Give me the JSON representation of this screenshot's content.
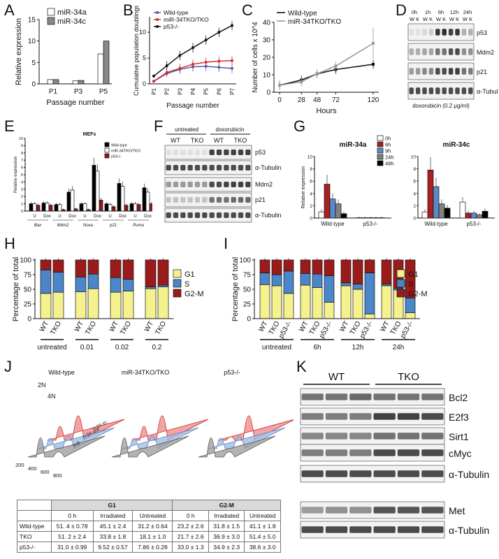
{
  "panels": {
    "A": {
      "letter": "A",
      "legend": [
        "miR-34a",
        "miR-34c"
      ],
      "ylabel": "Relative expression",
      "xlabel": "Passage number",
      "categories": [
        "P1",
        "P3",
        "P5"
      ],
      "yticks": [
        "0",
        "5",
        "10",
        "15"
      ],
      "series": [
        {
          "name": "miR-34a",
          "values": [
            1,
            0.7,
            7
          ],
          "color": "#ffffff"
        },
        {
          "name": "miR-34c",
          "values": [
            1,
            0.8,
            10
          ],
          "color": "#888888"
        }
      ]
    },
    "B": {
      "letter": "B",
      "legend": [
        "Wild-type",
        "miR-34TKO/TKO",
        "p53-/-"
      ],
      "ylabel": "Cumulative population doublings",
      "xlabel": "Passage number",
      "categories": [
        "P1",
        "P2",
        "P3",
        "P4",
        "P5",
        "P6",
        "P7"
      ],
      "yticks": [
        "0",
        "5",
        "10"
      ],
      "series": [
        {
          "name": "Wild-type",
          "values": [
            0.5,
            2,
            2.8,
            3.3,
            3.4,
            3.2,
            3.0
          ],
          "color": "#4a5fb0"
        },
        {
          "name": "miR-34TKO/TKO",
          "values": [
            0.5,
            2.2,
            3.0,
            3.8,
            4.2,
            4.4,
            4.5
          ],
          "color": "#d62e2e"
        },
        {
          "name": "p53-/-",
          "values": [
            1.5,
            3.5,
            5.5,
            7.0,
            8.5,
            10,
            11.3
          ],
          "color": "#111111"
        }
      ]
    },
    "C": {
      "letter": "C",
      "legend": [
        "Wild-type",
        "miR-34TKO/TKO"
      ],
      "ylabel": "Number of cells x 10^4",
      "xlabel": "Hours",
      "x": [
        0,
        28,
        48,
        72,
        120
      ],
      "xticks": [
        "0",
        "28",
        "48",
        "72",
        "120"
      ],
      "yticks": [
        "0",
        "10",
        "20",
        "30",
        "40"
      ],
      "series": [
        {
          "name": "Wild-type",
          "values": [
            4,
            7,
            10.5,
            13,
            16
          ],
          "color": "#111111"
        },
        {
          "name": "miR-34TKO/TKO",
          "values": [
            4,
            6,
            10.5,
            15,
            28
          ],
          "color": "#999999"
        }
      ]
    },
    "D": {
      "letter": "D",
      "times": [
        "0h",
        "1h",
        "6h",
        "12h",
        "24h"
      ],
      "lanes": "W K",
      "bands": [
        "p53",
        "Mdm2",
        "p21",
        "α-Tubulin"
      ],
      "caption": "doxorubicin (0.2 μg/ml)"
    },
    "E": {
      "letter": "E",
      "title": "MEFs",
      "legend": [
        "Wild-type",
        "miR-34TKO/TKO",
        "p53-/-"
      ],
      "ylabel": "Relative expression",
      "yticks": [
        "0",
        "1",
        "2",
        "3",
        "4",
        "5",
        "6",
        "7",
        "8",
        "9",
        "10"
      ],
      "genes": [
        "Bax",
        "Mdm2",
        "Noxa",
        "p21",
        "Puma"
      ],
      "conditions": [
        "U",
        "Dox"
      ],
      "series": [
        {
          "name": "Wild-type",
          "values": [
            1,
            1.1,
            0.9,
            2.6,
            1.0,
            6.3,
            1.0,
            3.8,
            1.0,
            3.2
          ],
          "color": "#000000"
        },
        {
          "name": "miR-34TKO/TKO",
          "values": [
            1.0,
            1.1,
            0.9,
            2.9,
            1.0,
            5.5,
            0.9,
            3.4,
            1.0,
            2.6
          ],
          "color": "#ffffff"
        },
        {
          "name": "p53-/-",
          "values": [
            0.8,
            0.8,
            0.2,
            0.3,
            0.2,
            1.5,
            0.6,
            0.8,
            0.9,
            1.0
          ],
          "color": "#8b1a1a"
        }
      ]
    },
    "F": {
      "letter": "F",
      "groups": [
        "untreated",
        "doxorubicin"
      ],
      "lanes": [
        "WT",
        "TKO",
        "WT",
        "TKO"
      ],
      "bands": [
        "p53",
        "α-Tubulin",
        "Mdm2",
        "p21",
        "α-Tubulin"
      ]
    },
    "G": {
      "letter": "G",
      "ylabel": "Relative expression",
      "yticks": [
        "0",
        "2",
        "4",
        "6",
        "8",
        "10"
      ],
      "legend": [
        "0h",
        "6h",
        "9h",
        "24h",
        "48h"
      ],
      "colors": [
        "#ffffff",
        "#a82020",
        "#5a8ac6",
        "#808080",
        "#000000"
      ],
      "charts": [
        {
          "title": "miR-34a",
          "groups": [
            "Wild-type",
            "p53-/-"
          ],
          "values": [
            [
              1,
              5.5,
              3.1,
              2.3,
              0.7
            ],
            [
              0.05,
              0.05,
              0.05,
              0.05,
              0.05
            ]
          ]
        },
        {
          "title": "miR-34c",
          "groups": [
            "Wild-type",
            "p53-/-"
          ],
          "values": [
            [
              1,
              7.8,
              5.1,
              2.3,
              1.6
            ],
            [
              2.6,
              0.8,
              0.8,
              0.5,
              1.1
            ]
          ]
        }
      ]
    },
    "H": {
      "letter": "H",
      "ylabel": "Percentage of total",
      "yticks": [
        "0",
        "25",
        "50",
        "75",
        "100"
      ],
      "legend": [
        "G1",
        "S",
        "G2-M"
      ],
      "colors": [
        "#f5f28e",
        "#4a86c8",
        "#9b1b1b"
      ],
      "bars": [
        "WT",
        "TKO",
        "WT",
        "TKO",
        "WT",
        "TKO",
        "WT",
        "TKO"
      ],
      "groups": [
        "untreated",
        "0.01",
        "0.02",
        "0.2"
      ],
      "g1": [
        43,
        45,
        46,
        51,
        45,
        47,
        51,
        54
      ],
      "s": [
        40,
        34,
        25,
        25,
        25,
        20,
        3,
        3
      ]
    },
    "I": {
      "letter": "I",
      "ylabel": "Percentage of total",
      "yticks": [
        "0",
        "25",
        "50",
        "75",
        "100"
      ],
      "legend": [
        "G1",
        "S",
        "G2-M"
      ],
      "colors": [
        "#f5f28e",
        "#4a86c8",
        "#9b1b1b"
      ],
      "bars": [
        "WT",
        "TKO",
        "p53-/-",
        "WT",
        "TKO",
        "p53-/-",
        "WT",
        "TKO",
        "p53-/-",
        "WT",
        "TKO",
        "p53-/-"
      ],
      "groups": [
        "untreated",
        "6h",
        "12h",
        "24h"
      ],
      "g1": [
        58,
        56,
        43,
        57,
        53,
        28,
        56,
        50,
        8,
        56,
        49,
        10
      ],
      "s": [
        20,
        19,
        38,
        20,
        23,
        45,
        5,
        9,
        70,
        3,
        3,
        25
      ]
    },
    "J": {
      "letter": "J",
      "genotypes": [
        "Wild-type",
        "miR-34TKO/TKO",
        "p53-/-"
      ],
      "peaks": [
        "2N",
        "4N"
      ],
      "traces": [
        "t=24 irr.",
        "t=24 unt.",
        "t=0"
      ],
      "xticks": [
        "200",
        "400",
        "600",
        "800"
      ],
      "table": {
        "headers": [
          "G1",
          "G2-M"
        ],
        "subheaders": [
          "0 h",
          "Irradiated",
          "Untreated",
          "0 h",
          "Irradiated",
          "Untreated"
        ],
        "rows": [
          {
            "label": "Wild-type",
            "cells": [
              "51. 4 ± 0.78",
              "45.1 ± 2.4",
              "31.2 ± 0.64",
              "23.2 ± 2.6",
              "31.8 ± 1.5",
              "41.1 ± 1.8"
            ]
          },
          {
            "label": "TKO",
            "cells": [
              "51. 2 ± 2.4",
              "33.8 ± 1.8",
              "18.1 ± 1.0",
              "21.7 ± 2.6",
              "36.9 ± 3.0",
              "51.4 ± 5.0"
            ]
          },
          {
            "label": "p53-/-",
            "cells": [
              "31.0 ± 0.99",
              "9.52 ± 0.57",
              "7.86 ± 0.28",
              "33.0 ± 1.3",
              "34.9 ± 2.3",
              "38.6 ± 3.0"
            ]
          }
        ]
      }
    },
    "K": {
      "letter": "K",
      "groups": [
        "WT",
        "TKO"
      ],
      "bands": [
        "Bcl2",
        "E2f3",
        "Sirt1",
        "cMyc",
        "α-Tubulin",
        "Met",
        "α-Tubulin"
      ]
    }
  }
}
